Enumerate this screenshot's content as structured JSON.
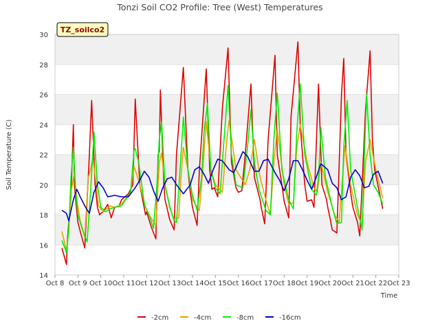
{
  "chart_data": {
    "type": "line",
    "title": "Tonzi Soil CO2 Profile: Tree (West) Temperatures",
    "annotation": "TZ_soilco2",
    "xlabel": "Time",
    "ylabel": "Soil Temperature (C)",
    "xlim": [
      8,
      23
    ],
    "ylim": [
      14,
      30
    ],
    "x_ticks": [
      "Oct 8",
      "Oct 9",
      "Oct 10",
      "Oct 11",
      "Oct 12",
      "Oct 13",
      "Oct 14",
      "Oct 15",
      "Oct 16",
      "Oct 17",
      "Oct 18",
      "Oct 19",
      "Oct 20",
      "Oct 21",
      "Oct 22",
      "Oct 23"
    ],
    "y_ticks": [
      "14",
      "16",
      "18",
      "20",
      "22",
      "24",
      "26",
      "28",
      "30"
    ],
    "grid": "horizontal bands",
    "legend_position": "bottom",
    "series": [
      {
        "name": "-2cm",
        "color": "#dd0000",
        "x": [
          8.3,
          8.5,
          8.55,
          8.7,
          8.8,
          8.85,
          8.9,
          9.0,
          9.1,
          9.3,
          9.5,
          9.6,
          9.75,
          9.85,
          9.95,
          10.0,
          10.1,
          10.3,
          10.45,
          10.6,
          10.8,
          10.9,
          11.2,
          11.4,
          11.5,
          11.7,
          11.95,
          12.0,
          12.2,
          12.4,
          12.5,
          12.55,
          12.6,
          12.75,
          12.8,
          12.9,
          13.0,
          13.2,
          13.3,
          13.6,
          13.8,
          13.9,
          14.0,
          14.2,
          14.3,
          14.6,
          14.75,
          14.85,
          14.95,
          15.1,
          15.3,
          15.55,
          15.7,
          15.9,
          16.0,
          16.15,
          16.3,
          16.55,
          16.7,
          16.95,
          17.0,
          17.15,
          17.3,
          17.6,
          17.7,
          17.9,
          18.0,
          18.2,
          18.3,
          18.6,
          18.7,
          18.9,
          19.0,
          19.2,
          19.3,
          19.5,
          19.65,
          19.85,
          19.9,
          20.0,
          20.1,
          20.3,
          20.5,
          20.6,
          20.7,
          20.9,
          21.0,
          21.2,
          21.3,
          21.55,
          21.75,
          21.85,
          21.95,
          22.1,
          22.3
        ],
        "y": [
          15.8,
          14.7,
          16.5,
          19.2,
          24.0,
          20.0,
          19.0,
          17.5,
          16.9,
          15.8,
          22.0,
          25.6,
          20.0,
          18.5,
          18.0,
          18.1,
          18.2,
          18.7,
          17.8,
          18.5,
          18.6,
          19.0,
          19.4,
          20.0,
          25.7,
          20.0,
          18.0,
          18.2,
          17.2,
          16.4,
          22.0,
          22.2,
          26.3,
          20.0,
          19.0,
          18.4,
          17.7,
          17.0,
          22.0,
          27.8,
          21.0,
          19.5,
          18.5,
          17.3,
          21.0,
          27.7,
          21.0,
          19.7,
          19.8,
          19.2,
          25.0,
          29.1,
          21.5,
          19.8,
          19.5,
          19.6,
          22.0,
          26.7,
          20.5,
          19.0,
          18.5,
          17.4,
          23.0,
          28.6,
          22.0,
          20.0,
          18.9,
          17.8,
          24.5,
          29.5,
          24.0,
          20.0,
          18.9,
          19.0,
          18.5,
          26.7,
          20.0,
          19.0,
          18.5,
          17.8,
          17.0,
          16.8,
          26.0,
          28.4,
          22.0,
          19.5,
          18.5,
          17.5,
          16.6,
          25.0,
          28.9,
          23.0,
          21.0,
          19.9,
          18.4
        ]
      },
      {
        "name": "-4cm",
        "color": "#eea000",
        "x": [
          8.3,
          8.5,
          8.6,
          8.7,
          8.85,
          8.95,
          9.1,
          9.3,
          9.45,
          9.55,
          9.65,
          9.8,
          9.9,
          10.1,
          10.4,
          10.6,
          10.9,
          11.3,
          11.45,
          11.5,
          11.7,
          11.95,
          12.1,
          12.4,
          12.55,
          12.65,
          12.8,
          13.0,
          13.2,
          13.4,
          13.5,
          13.6,
          13.8,
          14.0,
          14.3,
          14.45,
          14.6,
          14.8,
          15.0,
          15.3,
          15.5,
          15.6,
          15.9,
          16.3,
          16.5,
          16.7,
          16.95,
          17.2,
          17.4,
          17.55,
          17.7,
          18.0,
          18.2,
          18.4,
          18.55,
          18.7,
          19.0,
          19.3,
          19.45,
          19.6,
          19.9,
          20.2,
          20.4,
          20.55,
          20.65,
          20.9,
          21.2,
          21.4,
          21.55,
          21.75,
          22.0,
          22.3
        ],
        "y": [
          16.9,
          15.6,
          17.0,
          19.5,
          20.8,
          19.0,
          17.6,
          16.5,
          20.5,
          21.0,
          21.8,
          20.0,
          18.6,
          18.2,
          18.6,
          18.5,
          18.7,
          19.5,
          21.2,
          21.0,
          20.0,
          18.5,
          18.0,
          17.3,
          21.5,
          22.1,
          20.0,
          18.5,
          17.7,
          17.8,
          20.5,
          22.5,
          21.0,
          19.0,
          18.3,
          21.0,
          24.2,
          21.0,
          20.0,
          19.5,
          23.0,
          24.3,
          21.0,
          20.0,
          21.0,
          23.0,
          20.5,
          19.0,
          18.0,
          21.5,
          23.7,
          20.0,
          18.7,
          18.8,
          22.5,
          24.0,
          21.5,
          19.8,
          19.5,
          21.5,
          19.5,
          18.0,
          17.5,
          20.5,
          22.6,
          20.0,
          18.0,
          17.4,
          21.5,
          23.0,
          21.0,
          19.1
        ]
      },
      {
        "name": "-8cm",
        "color": "#00ee00",
        "x": [
          8.3,
          8.5,
          8.6,
          8.7,
          8.8,
          8.9,
          9.0,
          9.2,
          9.4,
          9.55,
          9.7,
          9.85,
          10.0,
          10.2,
          10.4,
          10.6,
          10.9,
          11.3,
          11.45,
          11.5,
          11.65,
          11.9,
          12.1,
          12.3,
          12.45,
          12.55,
          12.65,
          12.8,
          13.0,
          13.2,
          13.3,
          13.5,
          13.6,
          13.8,
          14.0,
          14.2,
          14.4,
          14.5,
          14.65,
          14.8,
          15.0,
          15.2,
          15.4,
          15.55,
          15.7,
          15.9,
          16.2,
          16.4,
          16.55,
          16.7,
          16.9,
          17.2,
          17.4,
          17.55,
          17.7,
          17.9,
          18.2,
          18.4,
          18.55,
          18.7,
          18.9,
          19.2,
          19.4,
          19.5,
          19.6,
          19.8,
          20.1,
          20.3,
          20.5,
          20.6,
          20.75,
          20.9,
          21.2,
          21.4,
          21.5,
          21.6,
          21.75,
          21.9,
          22.1,
          22.3
        ],
        "y": [
          16.3,
          15.5,
          17.0,
          20.5,
          22.5,
          19.5,
          18.0,
          17.0,
          16.2,
          19.5,
          23.5,
          20.0,
          18.5,
          18.2,
          18.4,
          18.5,
          18.6,
          19.5,
          22.3,
          22.4,
          21.5,
          18.7,
          18.0,
          17.1,
          20.0,
          23.0,
          24.2,
          20.0,
          18.6,
          17.6,
          17.5,
          22.0,
          24.5,
          21.0,
          19.3,
          18.3,
          20.5,
          23.5,
          25.4,
          21.0,
          19.8,
          19.4,
          23.5,
          26.6,
          22.0,
          20.0,
          19.8,
          22.5,
          25.0,
          21.5,
          19.7,
          18.3,
          18.0,
          23.0,
          26.1,
          21.0,
          19.0,
          18.4,
          23.5,
          26.7,
          22.0,
          19.7,
          19.3,
          20.5,
          23.8,
          20.5,
          18.5,
          17.4,
          17.5,
          22.5,
          25.6,
          21.0,
          18.5,
          17.0,
          22.0,
          26.0,
          22.0,
          20.0,
          19.5,
          18.7
        ]
      },
      {
        "name": "-16cm",
        "color": "#0000cc",
        "x": [
          8.3,
          8.5,
          8.6,
          8.8,
          8.95,
          9.1,
          9.3,
          9.5,
          9.7,
          9.9,
          10.1,
          10.3,
          10.6,
          10.9,
          11.2,
          11.5,
          11.7,
          11.9,
          12.1,
          12.3,
          12.5,
          12.7,
          12.9,
          13.1,
          13.3,
          13.6,
          13.9,
          14.1,
          14.3,
          14.5,
          14.7,
          14.9,
          15.1,
          15.3,
          15.6,
          15.8,
          16.0,
          16.2,
          16.4,
          16.7,
          16.9,
          17.1,
          17.3,
          17.6,
          17.8,
          18.0,
          18.2,
          18.4,
          18.6,
          18.8,
          19.0,
          19.2,
          19.4,
          19.6,
          19.9,
          20.1,
          20.3,
          20.5,
          20.7,
          20.9,
          21.1,
          21.3,
          21.5,
          21.7,
          21.9,
          22.1,
          22.3
        ],
        "y": [
          18.3,
          18.1,
          17.6,
          19.0,
          19.7,
          19.2,
          18.6,
          18.1,
          19.5,
          20.2,
          19.8,
          19.2,
          19.3,
          19.2,
          19.2,
          19.8,
          20.3,
          20.9,
          20.5,
          19.6,
          18.9,
          19.8,
          20.4,
          20.5,
          20.0,
          19.4,
          20.0,
          21.0,
          21.2,
          20.7,
          20.1,
          21.0,
          21.7,
          21.6,
          21.0,
          20.8,
          21.5,
          22.2,
          21.9,
          20.9,
          20.9,
          21.6,
          21.7,
          20.8,
          20.3,
          19.6,
          20.4,
          21.6,
          21.6,
          21.0,
          20.3,
          19.7,
          20.5,
          21.4,
          21.0,
          20.1,
          19.8,
          19.0,
          19.2,
          20.5,
          21.0,
          20.6,
          19.8,
          19.9,
          20.7,
          20.9,
          20.1
        ]
      }
    ]
  }
}
